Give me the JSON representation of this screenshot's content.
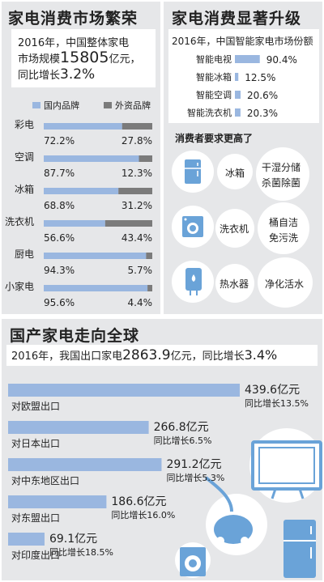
{
  "market": {
    "title": "家电消费市场繁荣",
    "summary_line1": "2016年，中国整体家电",
    "summary_line2_prefix": "市场规模",
    "summary_value": "15805",
    "summary_unit": "亿元，",
    "summary_line3_prefix": "同比增长",
    "summary_growth": "3.2%",
    "legend": [
      "国内品牌",
      "外资品牌"
    ]
  },
  "upgrade": {
    "title": "家电消费显著升级",
    "subtitle": "2016年，中国智能家电市场份额",
    "items": [
      {
        "name": "智能电视",
        "value_label": "90.4%",
        "value": 90.4
      },
      {
        "name": "智能冰箱",
        "value_label": "12.5%",
        "value": 12.5
      },
      {
        "name": "智能空调",
        "value_label": "20.6%",
        "value": 20.6
      },
      {
        "name": "智能洗衣机",
        "value_label": "20.3%",
        "value": 20.3
      }
    ],
    "demand_title": "消费者要求更高了",
    "demands": [
      {
        "name": "冰箱",
        "line1": "干湿分储",
        "line2": "杀菌除菌",
        "icon": "fridge-icon"
      },
      {
        "name": "洗衣机",
        "line1": "桶自洁",
        "line2": "免污洗",
        "icon": "washer-icon"
      },
      {
        "name": "热水器",
        "line1": "净化活水",
        "line2": "",
        "icon": "water-heater-icon"
      }
    ]
  },
  "global": {
    "title": "国产家电走向全球",
    "summary_prefix": "2016年，我国出口家电",
    "summary_value": "2863.9",
    "summary_unit": "亿元，同比增长",
    "summary_growth": "3.4%",
    "exports": [
      {
        "name": "对欧盟出口",
        "value_label": "439.6亿元",
        "growth_label": "同比增长13.5%"
      },
      {
        "name": "对日本出口",
        "value_label": "266.8亿元",
        "growth_label": "同比增长6.5%"
      },
      {
        "name": "对中东地区出口",
        "value_label": "291.2亿元",
        "growth_label": "同比增长5.3%"
      },
      {
        "name": "对东盟出口",
        "value_label": "186.6亿元",
        "growth_label": "同比增长16.0%"
      },
      {
        "name": "对印度出口",
        "value_label": "69.1亿元",
        "growth_label": "同比增长18.5%"
      }
    ]
  },
  "colors": {
    "domestic": "#9ab7e0",
    "foreign": "#7b7b7b",
    "panel": "#e6e7e9"
  },
  "chart_data": [
    {
      "type": "bar",
      "stacked": true,
      "orientation": "horizontal",
      "title": "家电消费市场繁荣",
      "categories": [
        "彩电",
        "空调",
        "冰箱",
        "洗衣机",
        "厨电",
        "小家电"
      ],
      "series": [
        {
          "name": "国内品牌",
          "values": [
            72.2,
            87.7,
            68.8,
            56.6,
            94.3,
            95.6
          ],
          "labels": [
            "72.2%",
            "87.7%",
            "68.8%",
            "56.6%",
            "94.3%",
            "95.6%"
          ]
        },
        {
          "name": "外资品牌",
          "values": [
            27.8,
            12.3,
            31.2,
            43.4,
            5.7,
            4.4
          ],
          "labels": [
            "27.8%",
            "12.3%",
            "31.2%",
            "43.4%",
            "5.7%",
            "4.4%"
          ]
        }
      ],
      "xlim": [
        0,
        100
      ],
      "legend": "top"
    },
    {
      "type": "bar",
      "orientation": "horizontal",
      "title": "家电消费显著升级",
      "categories": [
        "智能电视",
        "智能冰箱",
        "智能空调",
        "智能洗衣机"
      ],
      "values": [
        90.4,
        12.5,
        20.6,
        20.3
      ]
    },
    {
      "type": "bar",
      "orientation": "horizontal",
      "title": "国产家电走向全球",
      "categories": [
        "对欧盟出口",
        "对日本出口",
        "对中东地区出口",
        "对东盟出口",
        "对印度出口"
      ],
      "values": [
        439.6,
        266.8,
        291.2,
        186.6,
        69.1
      ],
      "growth": [
        13.5,
        6.5,
        5.3,
        16.0,
        18.5
      ]
    }
  ]
}
